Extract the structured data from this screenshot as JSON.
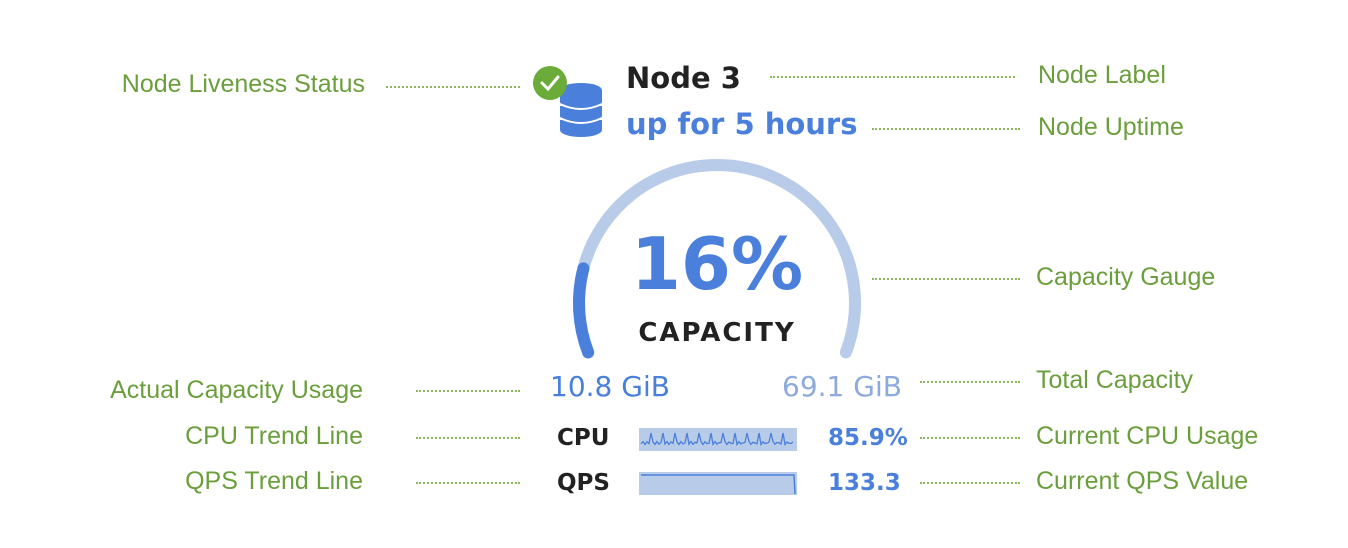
{
  "annotations": {
    "liveness": "Node Liveness Status",
    "node_label": "Node Label",
    "uptime": "Node Uptime",
    "gauge": "Capacity Gauge",
    "usage": "Actual Capacity Usage",
    "total": "Total Capacity",
    "cpu_trend": "CPU Trend Line",
    "cpu_current": "Current CPU Usage",
    "qps_trend": "QPS Trend Line",
    "qps_current": "Current QPS Value"
  },
  "node": {
    "name": "Node 3",
    "uptime": "up for 5 hours",
    "status": "live",
    "status_icon": "check-circle-icon",
    "node_icon": "database-icon"
  },
  "capacity": {
    "percent_label": "16%",
    "percent": 16,
    "caption": "CAPACITY",
    "used": "10.8 GiB",
    "total": "69.1 GiB"
  },
  "metrics": {
    "cpu_label": "CPU",
    "cpu_value": "85.9%",
    "qps_label": "QPS",
    "qps_value": "133.3"
  },
  "colors": {
    "annotation": "#6b9e3c",
    "accent": "#4a7fdb",
    "track": "#b8cbe8",
    "status": "#6aab3a"
  }
}
